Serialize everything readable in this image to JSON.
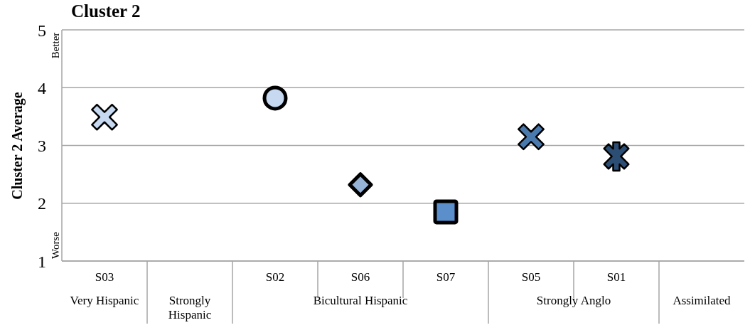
{
  "chart_data": {
    "type": "scatter",
    "title": "Cluster 2",
    "ylabel": "Cluster 2 Average",
    "categories": [
      "S03",
      null,
      "S02",
      "S06",
      "S07",
      "S05",
      "S01",
      null
    ],
    "series": [
      {
        "color": "#c6d9f1",
        "marker": "cross",
        "values": [
          3.49,
          null,
          null,
          null,
          null,
          null,
          null,
          null
        ]
      },
      {
        "color": "#c6d9f1",
        "marker": "circle",
        "values": [
          null,
          null,
          3.82,
          null,
          null,
          null,
          null,
          null
        ]
      },
      {
        "color": "#95b3d7",
        "marker": "diamond",
        "values": [
          null,
          null,
          null,
          2.32,
          null,
          null,
          null,
          null
        ]
      },
      {
        "color": "#5b8fcc",
        "marker": "square",
        "values": [
          null,
          null,
          null,
          null,
          1.85,
          null,
          null,
          null
        ]
      },
      {
        "color": "#4a7aad",
        "marker": "cross",
        "values": [
          null,
          null,
          null,
          null,
          null,
          3.15,
          null,
          null
        ]
      },
      {
        "color": "#2c4e74",
        "marker": "star",
        "values": [
          null,
          null,
          null,
          null,
          null,
          null,
          2.81,
          null
        ]
      }
    ],
    "ylim": [
      1,
      5
    ],
    "yticks": [
      1,
      2,
      3,
      4,
      5
    ],
    "grid": "y",
    "annotations": [
      "Very Hispanic",
      "Strongly Hispanic",
      "Bicultural Hispanic",
      "Strongly Anglo",
      "Assimilated",
      "Better",
      "Worse"
    ]
  }
}
